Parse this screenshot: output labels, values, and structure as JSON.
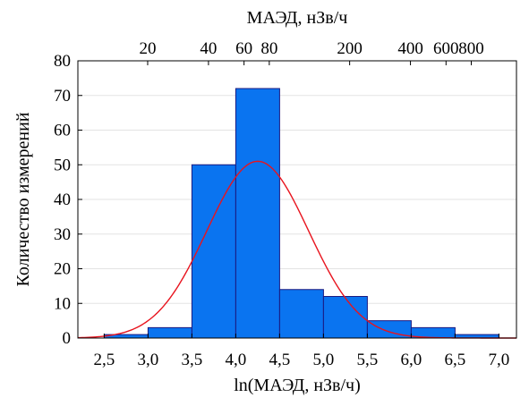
{
  "chart_data": {
    "type": "bar",
    "title": "",
    "xlabel": "ln(МАЭД, нЗв/ч)",
    "ylabel": "Количество измерений",
    "x2label": "МАЭД, нЗв/ч",
    "xlim": [
      2.2,
      7.2
    ],
    "ylim": [
      0,
      80
    ],
    "x_ticks": [
      {
        "value": 2.5,
        "label": "2,5"
      },
      {
        "value": 3.0,
        "label": "3,0"
      },
      {
        "value": 3.5,
        "label": "3,5"
      },
      {
        "value": 4.0,
        "label": "4,0"
      },
      {
        "value": 4.5,
        "label": "4,5"
      },
      {
        "value": 5.0,
        "label": "5,0"
      },
      {
        "value": 5.5,
        "label": "5,5"
      },
      {
        "value": 6.0,
        "label": "6,0"
      },
      {
        "value": 6.5,
        "label": "6,5"
      },
      {
        "value": 7.0,
        "label": "7,0"
      }
    ],
    "y_ticks": [
      0,
      10,
      20,
      30,
      40,
      50,
      60,
      70,
      80
    ],
    "top_ticks": [
      {
        "value": 20,
        "label": "20"
      },
      {
        "value": 40,
        "label": "40"
      },
      {
        "value": 60,
        "label": "60"
      },
      {
        "value": 80,
        "label": "80"
      },
      {
        "value": 200,
        "label": "200"
      },
      {
        "value": 400,
        "label": "400"
      },
      {
        "value": 600,
        "label": "600"
      },
      {
        "value": 800,
        "label": "800"
      }
    ],
    "bins": [
      {
        "start": 2.5,
        "end": 3.0,
        "count": 1
      },
      {
        "start": 3.0,
        "end": 3.5,
        "count": 3
      },
      {
        "start": 3.5,
        "end": 4.0,
        "count": 50
      },
      {
        "start": 4.0,
        "end": 4.5,
        "count": 72
      },
      {
        "start": 4.5,
        "end": 5.0,
        "count": 14
      },
      {
        "start": 5.0,
        "end": 5.5,
        "count": 12
      },
      {
        "start": 5.5,
        "end": 6.0,
        "count": 5
      },
      {
        "start": 6.0,
        "end": 6.5,
        "count": 3
      },
      {
        "start": 6.5,
        "end": 7.0,
        "count": 1
      }
    ],
    "normal_fit": {
      "mean": 4.25,
      "sd": 0.58,
      "peak": 51
    },
    "grid": true,
    "colors": {
      "bar_fill": "#0a74f0",
      "bar_stroke": "#1a1a80",
      "curve": "#e8141e",
      "grid": "#e3e3e3"
    }
  }
}
